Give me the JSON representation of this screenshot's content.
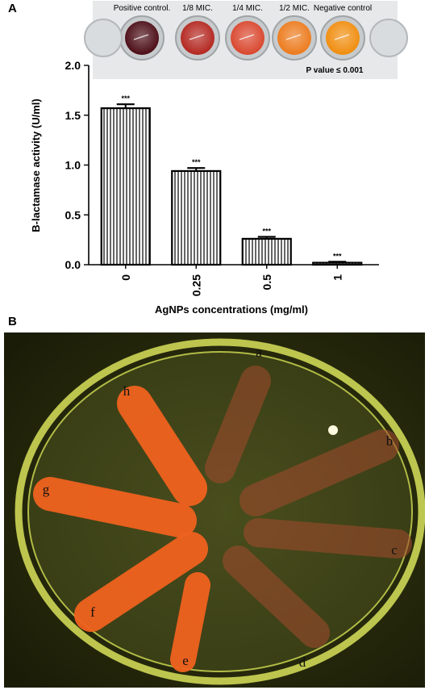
{
  "panel_a_label": "A",
  "panel_b_label": "B",
  "inset": {
    "wells": [
      "Positive control.",
      "1/8 MIC.",
      "1/4 MIC.",
      "1/2 MIC.",
      "Negative control"
    ],
    "well_colors": [
      "#4a0b14",
      "#b3251e",
      "#d9452c",
      "#ec7a1c",
      "#f08c0c"
    ],
    "p_value_label": "P value ≤ 0.001"
  },
  "chart_data": {
    "type": "bar",
    "categories": [
      "0",
      "0.25",
      "0.5",
      "1"
    ],
    "values": [
      1.57,
      0.94,
      0.26,
      0.02
    ],
    "errors": [
      0.04,
      0.03,
      0.02,
      0.01
    ],
    "significance": [
      "***",
      "***",
      "***",
      "***"
    ],
    "xlabel": "AgNPs concentrations (mg/ml)",
    "ylabel": "B-lactamase activity (U/ml)",
    "ylim": [
      0,
      2.0
    ],
    "yticks": [
      "0.0",
      "0.5",
      "1.0",
      "1.5",
      "2.0"
    ],
    "bar_fill": "vertical-hatch",
    "grid": false
  },
  "plate": {
    "streak_letters": [
      "a",
      "b",
      "c",
      "d",
      "e",
      "f",
      "g",
      "h"
    ],
    "streak_colors": {
      "bright": "#f0621f",
      "dim": "#9c4a2c",
      "plate_rim": "#d8e25a",
      "background": "#1c1e08"
    }
  }
}
